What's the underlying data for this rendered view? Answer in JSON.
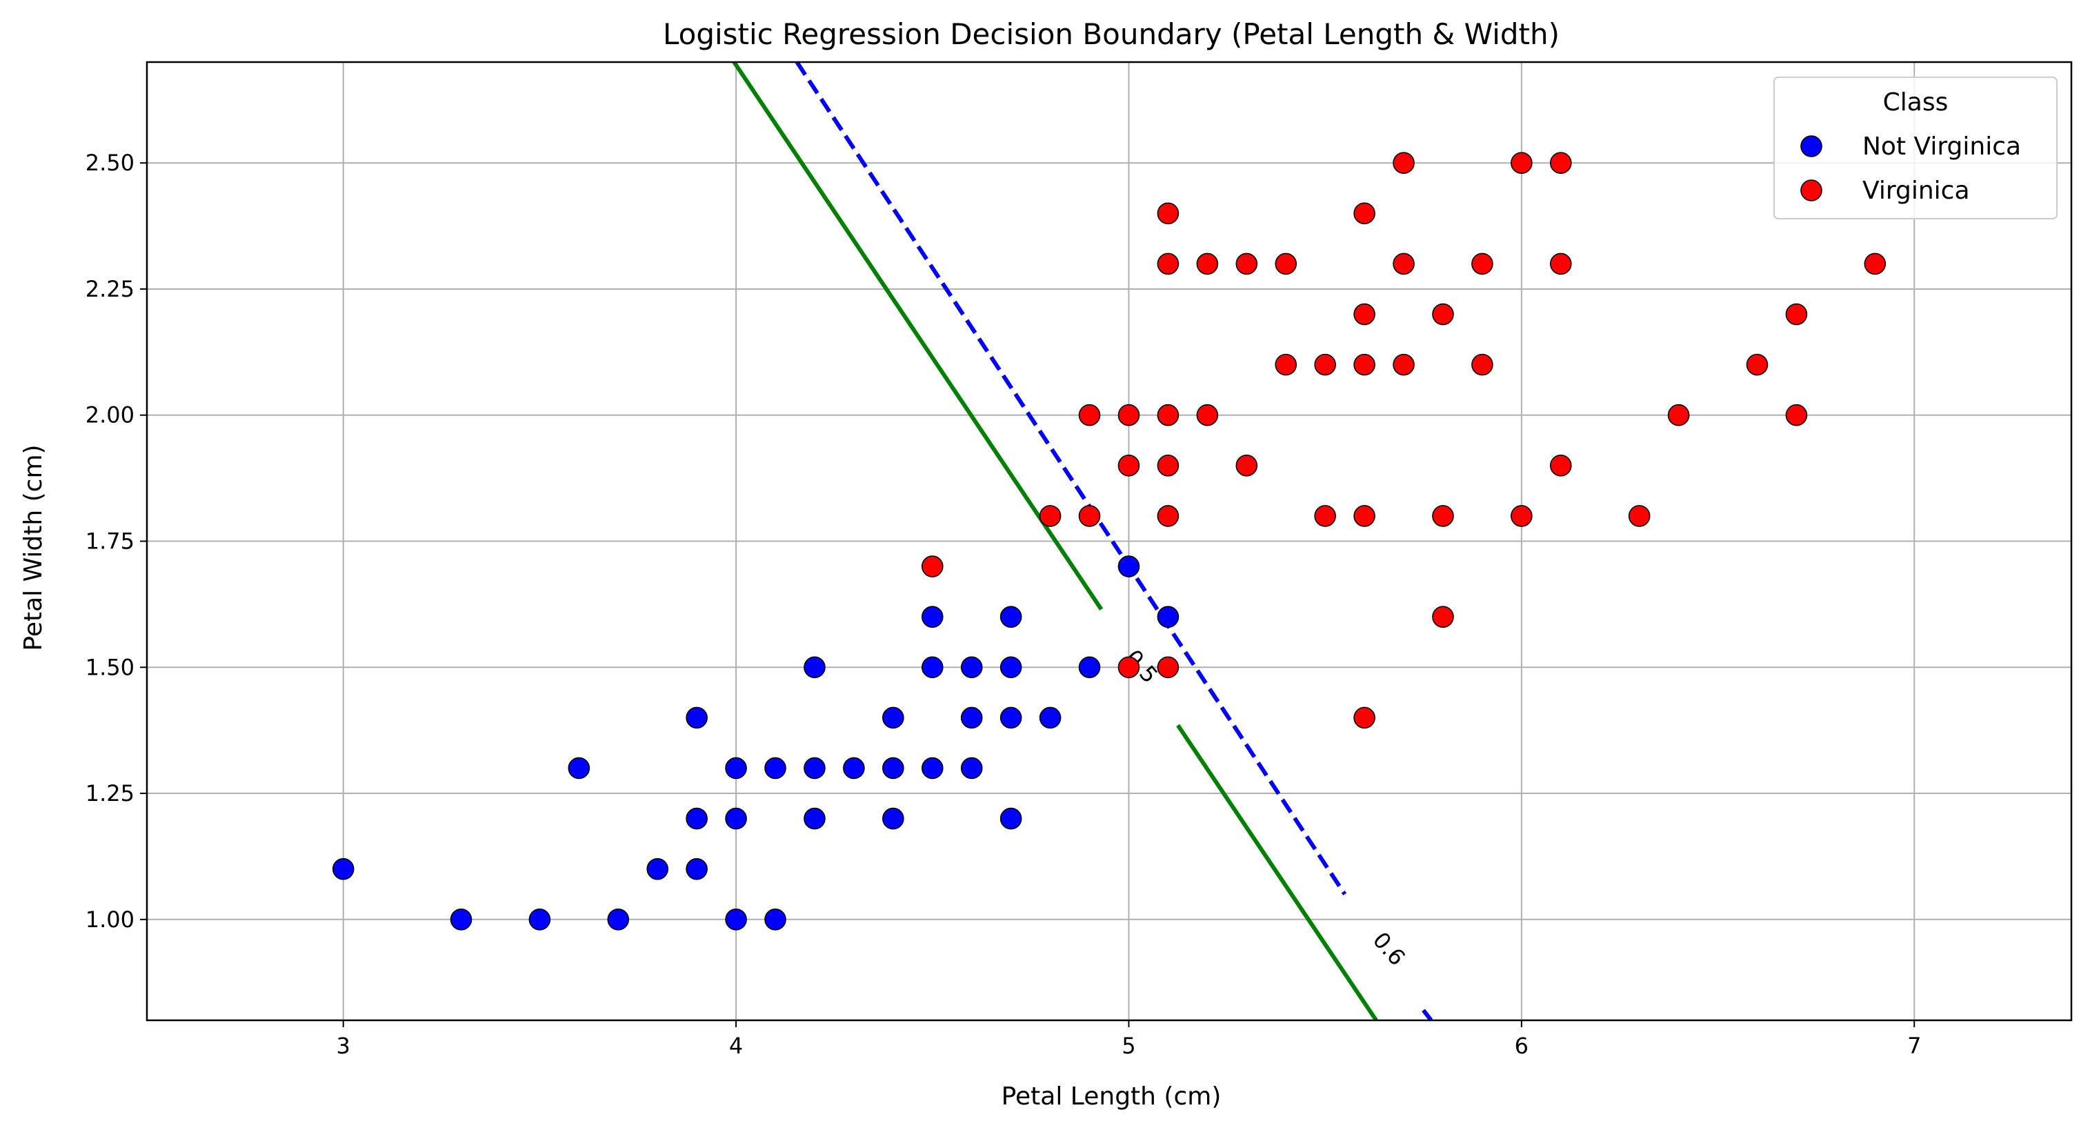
{
  "chart_data": {
    "type": "scatter",
    "title": "Logistic Regression Decision Boundary (Petal Length & Width)",
    "xlabel": "Petal Length (cm)",
    "ylabel": "Petal Width (cm)",
    "xlim": [
      2.5,
      7.4
    ],
    "ylim": [
      0.8,
      2.7
    ],
    "xticks": [
      3,
      4,
      5,
      6,
      7
    ],
    "xtick_labels": [
      "3",
      "4",
      "5",
      "6",
      "7"
    ],
    "yticks": [
      1.0,
      1.25,
      1.5,
      1.75,
      2.0,
      2.25,
      2.5
    ],
    "ytick_labels": [
      "1.00",
      "1.25",
      "1.50",
      "1.75",
      "2.00",
      "2.25",
      "2.50"
    ],
    "grid": true,
    "legend": {
      "title": "Class",
      "placement": "top-right",
      "entries": [
        {
          "label": "Not Virginica",
          "color": "#0000ff"
        },
        {
          "label": "Virginica",
          "color": "#ff0000"
        }
      ]
    },
    "series": [
      {
        "name": "Not Virginica",
        "color": "#0000ff",
        "points": [
          [
            3.0,
            1.1
          ],
          [
            3.3,
            1.0
          ],
          [
            3.5,
            1.0
          ],
          [
            3.6,
            1.3
          ],
          [
            3.7,
            1.0
          ],
          [
            3.8,
            1.1
          ],
          [
            3.9,
            1.1
          ],
          [
            3.9,
            1.2
          ],
          [
            3.9,
            1.4
          ],
          [
            4.0,
            1.0
          ],
          [
            4.0,
            1.2
          ],
          [
            4.0,
            1.3
          ],
          [
            4.1,
            1.0
          ],
          [
            4.1,
            1.3
          ],
          [
            4.2,
            1.2
          ],
          [
            4.2,
            1.3
          ],
          [
            4.2,
            1.5
          ],
          [
            4.3,
            1.3
          ],
          [
            4.4,
            1.2
          ],
          [
            4.4,
            1.3
          ],
          [
            4.4,
            1.4
          ],
          [
            4.5,
            1.3
          ],
          [
            4.5,
            1.5
          ],
          [
            4.5,
            1.6
          ],
          [
            4.6,
            1.3
          ],
          [
            4.6,
            1.4
          ],
          [
            4.6,
            1.5
          ],
          [
            4.7,
            1.2
          ],
          [
            4.7,
            1.4
          ],
          [
            4.7,
            1.5
          ],
          [
            4.7,
            1.6
          ],
          [
            4.8,
            1.4
          ],
          [
            4.9,
            1.5
          ],
          [
            5.0,
            1.7
          ],
          [
            5.1,
            1.6
          ]
        ]
      },
      {
        "name": "Virginica",
        "color": "#ff0000",
        "points": [
          [
            4.5,
            1.7
          ],
          [
            4.8,
            1.8
          ],
          [
            4.9,
            1.8
          ],
          [
            4.9,
            2.0
          ],
          [
            5.0,
            1.5
          ],
          [
            5.0,
            1.9
          ],
          [
            5.0,
            2.0
          ],
          [
            5.1,
            1.5
          ],
          [
            5.1,
            1.8
          ],
          [
            5.1,
            1.9
          ],
          [
            5.1,
            2.0
          ],
          [
            5.1,
            2.3
          ],
          [
            5.1,
            2.4
          ],
          [
            5.2,
            2.0
          ],
          [
            5.2,
            2.3
          ],
          [
            5.3,
            1.9
          ],
          [
            5.3,
            2.3
          ],
          [
            5.4,
            2.1
          ],
          [
            5.4,
            2.3
          ],
          [
            5.5,
            1.8
          ],
          [
            5.5,
            2.1
          ],
          [
            5.6,
            1.4
          ],
          [
            5.6,
            1.8
          ],
          [
            5.6,
            2.1
          ],
          [
            5.6,
            2.2
          ],
          [
            5.6,
            2.4
          ],
          [
            5.7,
            2.1
          ],
          [
            5.7,
            2.3
          ],
          [
            5.7,
            2.5
          ],
          [
            5.8,
            1.6
          ],
          [
            5.8,
            1.8
          ],
          [
            5.8,
            2.2
          ],
          [
            5.9,
            2.1
          ],
          [
            5.9,
            2.3
          ],
          [
            6.0,
            1.8
          ],
          [
            6.0,
            2.5
          ],
          [
            6.1,
            1.9
          ],
          [
            6.1,
            2.3
          ],
          [
            6.1,
            2.5
          ],
          [
            6.3,
            1.8
          ],
          [
            6.4,
            2.0
          ],
          [
            6.6,
            2.1
          ],
          [
            6.7,
            2.0
          ],
          [
            6.7,
            2.2
          ],
          [
            6.9,
            2.3
          ]
        ]
      }
    ],
    "contours": [
      {
        "level": "0.5",
        "color": "#008000",
        "style": "solid",
        "segments": [
          [
            [
              3.995,
              2.7
            ],
            [
              4.93,
              1.615
            ]
          ],
          [
            [
              5.125,
              1.385
            ],
            [
              5.63,
              0.8
            ]
          ]
        ],
        "label": {
          "text": "0.5",
          "x": 5.03,
          "y": 1.5,
          "angle": 49
        }
      },
      {
        "level": "0.6",
        "color": "#0000ff",
        "style": "dashed",
        "segments": [
          [
            [
              4.155,
              2.7
            ],
            [
              5.55,
              1.05
            ]
          ],
          [
            [
              5.75,
              0.82
            ],
            [
              5.77,
              0.8
            ]
          ]
        ],
        "label": {
          "text": "0.6",
          "x": 5.66,
          "y": 0.94,
          "angle": 49
        }
      }
    ]
  }
}
